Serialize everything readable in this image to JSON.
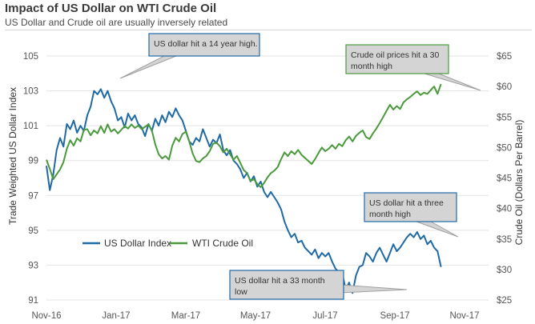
{
  "chart_data": {
    "type": "line",
    "title": "Impact of US Dollar on WTI Crude Oil",
    "subtitle": "US Dollar and Crude oil are usually inversely related",
    "x_ticks": [
      "Nov-16",
      "Jan-17",
      "Mar-17",
      "May-17",
      "Jul-17",
      "Sep-17",
      "Nov-17"
    ],
    "y_left": {
      "label": "Trade Weighted US Dollar Index",
      "ticks": [
        91,
        93,
        95,
        97,
        99,
        101,
        103,
        105
      ],
      "range": [
        91,
        105
      ]
    },
    "y_right": {
      "label": "Crude Oil (Dollars  Per Barrel)",
      "ticks": [
        "$25",
        "$30",
        "$35",
        "$40",
        "$45",
        "$50",
        "$55",
        "$60",
        "$65"
      ],
      "range": [
        25,
        65
      ]
    },
    "x_range_days": [
      0,
      390
    ],
    "series": [
      {
        "name": "US Dollar Index",
        "axis": "left",
        "color": "#1f6aa5",
        "points": [
          [
            0,
            98.7
          ],
          [
            3,
            97.3
          ],
          [
            6,
            98.2
          ],
          [
            9,
            99.6
          ],
          [
            12,
            100.3
          ],
          [
            15,
            99.8
          ],
          [
            18,
            101.1
          ],
          [
            21,
            100.8
          ],
          [
            24,
            101.3
          ],
          [
            27,
            100.6
          ],
          [
            30,
            101.0
          ],
          [
            33,
            100.7
          ],
          [
            36,
            101.6
          ],
          [
            39,
            102.1
          ],
          [
            42,
            103.0
          ],
          [
            45,
            102.8
          ],
          [
            48,
            103.1
          ],
          [
            51,
            102.6
          ],
          [
            54,
            103.0
          ],
          [
            57,
            102.4
          ],
          [
            60,
            102.0
          ],
          [
            63,
            101.3
          ],
          [
            66,
            101.5
          ],
          [
            69,
            100.9
          ],
          [
            72,
            101.7
          ],
          [
            75,
            101.3
          ],
          [
            78,
            101.6
          ],
          [
            81,
            101.1
          ],
          [
            84,
            100.9
          ],
          [
            87,
            100.4
          ],
          [
            90,
            101.1
          ],
          [
            93,
            100.7
          ],
          [
            96,
            101.4
          ],
          [
            99,
            101.0
          ],
          [
            102,
            101.6
          ],
          [
            105,
            101.2
          ],
          [
            108,
            101.8
          ],
          [
            111,
            101.5
          ],
          [
            114,
            102.0
          ],
          [
            117,
            101.6
          ],
          [
            120,
            101.3
          ],
          [
            123,
            100.7
          ],
          [
            126,
            100.1
          ],
          [
            129,
            99.9
          ],
          [
            132,
            100.3
          ],
          [
            135,
            100.1
          ],
          [
            138,
            100.8
          ],
          [
            141,
            100.3
          ],
          [
            144,
            99.8
          ],
          [
            147,
            100.2
          ],
          [
            150,
            100.0
          ],
          [
            153,
            100.5
          ],
          [
            156,
            99.6
          ],
          [
            159,
            99.3
          ],
          [
            162,
            99.6
          ],
          [
            165,
            99.0
          ],
          [
            168,
            98.8
          ],
          [
            171,
            98.5
          ],
          [
            174,
            98.0
          ],
          [
            177,
            98.3
          ],
          [
            180,
            97.8
          ],
          [
            183,
            98.1
          ],
          [
            186,
            97.5
          ],
          [
            189,
            97.8
          ],
          [
            192,
            97.2
          ],
          [
            195,
            96.9
          ],
          [
            198,
            97.2
          ],
          [
            201,
            96.9
          ],
          [
            204,
            96.6
          ],
          [
            207,
            96.2
          ],
          [
            210,
            95.5
          ],
          [
            213,
            95.0
          ],
          [
            216,
            94.6
          ],
          [
            219,
            94.8
          ],
          [
            222,
            94.3
          ],
          [
            225,
            94.4
          ],
          [
            228,
            94.0
          ],
          [
            231,
            93.8
          ],
          [
            234,
            93.6
          ],
          [
            237,
            93.9
          ],
          [
            240,
            93.4
          ],
          [
            243,
            93.7
          ],
          [
            246,
            93.5
          ],
          [
            249,
            93.7
          ],
          [
            252,
            93.2
          ],
          [
            255,
            92.8
          ],
          [
            258,
            92.6
          ],
          [
            261,
            92.5
          ],
          [
            264,
            91.6
          ],
          [
            267,
            92.0
          ],
          [
            270,
            91.4
          ],
          [
            273,
            92.4
          ],
          [
            276,
            92.9
          ],
          [
            279,
            93.0
          ],
          [
            282,
            93.7
          ],
          [
            285,
            93.5
          ],
          [
            288,
            93.2
          ],
          [
            291,
            93.7
          ],
          [
            294,
            94.0
          ],
          [
            297,
            93.6
          ],
          [
            300,
            93.2
          ],
          [
            303,
            93.7
          ],
          [
            306,
            94.2
          ],
          [
            309,
            93.8
          ],
          [
            312,
            94.0
          ],
          [
            315,
            94.3
          ],
          [
            318,
            94.6
          ],
          [
            321,
            94.8
          ],
          [
            324,
            94.6
          ],
          [
            327,
            94.9
          ],
          [
            330,
            94.5
          ],
          [
            333,
            94.7
          ],
          [
            336,
            94.2
          ],
          [
            339,
            94.4
          ],
          [
            342,
            94.0
          ],
          [
            345,
            93.8
          ],
          [
            348,
            92.9
          ]
        ]
      },
      {
        "name": "WTI Crude Oil",
        "axis": "right",
        "color": "#4a9a3c",
        "points": [
          [
            0,
            48.0
          ],
          [
            3,
            46.5
          ],
          [
            6,
            44.8
          ],
          [
            9,
            45.6
          ],
          [
            12,
            46.4
          ],
          [
            15,
            47.6
          ],
          [
            18,
            49.8
          ],
          [
            21,
            51.2
          ],
          [
            24,
            50.3
          ],
          [
            27,
            51.5
          ],
          [
            30,
            51.0
          ],
          [
            33,
            52.9
          ],
          [
            36,
            53.0
          ],
          [
            39,
            52.0
          ],
          [
            42,
            52.8
          ],
          [
            45,
            52.3
          ],
          [
            48,
            53.5
          ],
          [
            51,
            52.4
          ],
          [
            54,
            53.8
          ],
          [
            57,
            52.6
          ],
          [
            60,
            53.0
          ],
          [
            63,
            52.3
          ],
          [
            66,
            52.9
          ],
          [
            69,
            53.5
          ],
          [
            72,
            53.1
          ],
          [
            75,
            53.8
          ],
          [
            78,
            53.2
          ],
          [
            81,
            53.6
          ],
          [
            84,
            53.0
          ],
          [
            87,
            53.4
          ],
          [
            90,
            53.8
          ],
          [
            93,
            52.8
          ],
          [
            96,
            50.5
          ],
          [
            99,
            48.9
          ],
          [
            102,
            48.2
          ],
          [
            105,
            48.6
          ],
          [
            108,
            48.0
          ],
          [
            111,
            50.3
          ],
          [
            114,
            51.6
          ],
          [
            117,
            51.0
          ],
          [
            120,
            52.2
          ],
          [
            123,
            52.6
          ],
          [
            126,
            51.0
          ],
          [
            129,
            49.0
          ],
          [
            132,
            47.8
          ],
          [
            135,
            47.6
          ],
          [
            138,
            48.2
          ],
          [
            141,
            48.6
          ],
          [
            144,
            49.4
          ],
          [
            147,
            50.6
          ],
          [
            150,
            50.8
          ],
          [
            153,
            50.2
          ],
          [
            156,
            49.2
          ],
          [
            159,
            49.8
          ],
          [
            162,
            48.9
          ],
          [
            165,
            48.0
          ],
          [
            168,
            48.6
          ],
          [
            171,
            47.5
          ],
          [
            174,
            46.3
          ],
          [
            177,
            45.8
          ],
          [
            180,
            44.5
          ],
          [
            183,
            44.8
          ],
          [
            186,
            44.0
          ],
          [
            189,
            43.5
          ],
          [
            192,
            44.2
          ],
          [
            195,
            45.1
          ],
          [
            198,
            45.8
          ],
          [
            201,
            46.2
          ],
          [
            204,
            46.8
          ],
          [
            207,
            48.1
          ],
          [
            210,
            49.2
          ],
          [
            213,
            48.6
          ],
          [
            216,
            49.4
          ],
          [
            219,
            48.9
          ],
          [
            222,
            49.6
          ],
          [
            225,
            48.8
          ],
          [
            228,
            48.3
          ],
          [
            231,
            47.8
          ],
          [
            234,
            47.3
          ],
          [
            237,
            48.1
          ],
          [
            240,
            49.1
          ],
          [
            243,
            50.0
          ],
          [
            246,
            49.4
          ],
          [
            249,
            49.8
          ],
          [
            252,
            50.4
          ],
          [
            255,
            49.8
          ],
          [
            258,
            50.6
          ],
          [
            261,
            50.2
          ],
          [
            264,
            51.2
          ],
          [
            267,
            51.8
          ],
          [
            270,
            51.0
          ],
          [
            273,
            51.9
          ],
          [
            276,
            52.4
          ],
          [
            279,
            52.8
          ],
          [
            282,
            51.7
          ],
          [
            285,
            51.4
          ],
          [
            288,
            52.3
          ],
          [
            291,
            53.1
          ],
          [
            294,
            54.0
          ],
          [
            297,
            55.0
          ],
          [
            300,
            56.0
          ],
          [
            303,
            57.0
          ],
          [
            306,
            56.2
          ],
          [
            309,
            56.8
          ],
          [
            312,
            56.3
          ],
          [
            315,
            57.4
          ],
          [
            318,
            57.9
          ],
          [
            321,
            58.3
          ],
          [
            324,
            58.8
          ],
          [
            327,
            59.2
          ],
          [
            330,
            58.6
          ],
          [
            333,
            59.0
          ],
          [
            336,
            58.8
          ],
          [
            339,
            59.4
          ],
          [
            342,
            60.0
          ],
          [
            345,
            58.8
          ],
          [
            348,
            60.4
          ]
        ]
      }
    ],
    "legend": [
      {
        "label": "US Dollar Index",
        "color": "#1f6aa5"
      },
      {
        "label": "WTI Crude Oil",
        "color": "#4a9a3c"
      }
    ],
    "annotations": [
      {
        "id": "a1",
        "text": [
          "US dollar hit a 14 year high."
        ],
        "border": "#1f6aa5"
      },
      {
        "id": "a2",
        "text": [
          "Crude oil prices hit a 30",
          "month high"
        ],
        "border": "#4a9a3c"
      },
      {
        "id": "a3",
        "text": [
          "US dollar hit a three",
          "month high"
        ],
        "border": "#1f6aa5"
      },
      {
        "id": "a4",
        "text": [
          "US dollar hit a 33 month",
          "low"
        ],
        "border": "#1f6aa5"
      }
    ]
  }
}
